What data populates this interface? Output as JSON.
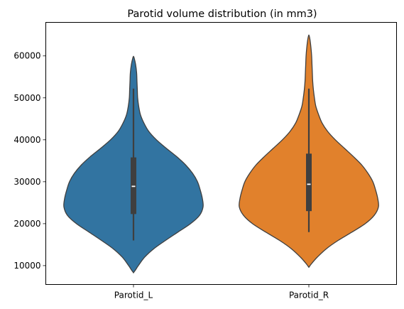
{
  "chart_data": {
    "type": "violin",
    "title": "Parotid volume distribution (in mm3)",
    "xlabel": "",
    "ylabel": "",
    "categories": [
      "Parotid_L",
      "Parotid_R"
    ],
    "colors": [
      "#3274a1",
      "#e1812c"
    ],
    "ylim": [
      5500,
      68000
    ],
    "yticks": [
      10000,
      20000,
      30000,
      40000,
      50000,
      60000
    ],
    "ytick_labels": [
      "10000",
      "20000",
      "30000",
      "40000",
      "50000",
      "60000"
    ],
    "grid": false,
    "legend": "none",
    "series": [
      {
        "category": "Parotid_L",
        "box": {
          "whisker_low": 16000,
          "q1": 22300,
          "median": 28900,
          "q3": 35800,
          "whisker_high": 52200
        },
        "density_profile": [
          [
            8300,
            0.0
          ],
          [
            9000,
            0.03
          ],
          [
            10000,
            0.07
          ],
          [
            12000,
            0.16
          ],
          [
            14000,
            0.29
          ],
          [
            16000,
            0.46
          ],
          [
            18000,
            0.64
          ],
          [
            20000,
            0.82
          ],
          [
            22000,
            0.95
          ],
          [
            24000,
            1.0
          ],
          [
            26000,
            0.99
          ],
          [
            28000,
            0.96
          ],
          [
            30000,
            0.92
          ],
          [
            32000,
            0.85
          ],
          [
            34000,
            0.75
          ],
          [
            36000,
            0.62
          ],
          [
            38000,
            0.47
          ],
          [
            40000,
            0.33
          ],
          [
            42000,
            0.22
          ],
          [
            44000,
            0.15
          ],
          [
            46000,
            0.1
          ],
          [
            48000,
            0.075
          ],
          [
            50000,
            0.06
          ],
          [
            52000,
            0.055
          ],
          [
            54000,
            0.05
          ],
          [
            56000,
            0.045
          ],
          [
            58000,
            0.03
          ],
          [
            59500,
            0.01
          ],
          [
            59900,
            0.0
          ]
        ]
      },
      {
        "category": "Parotid_R",
        "box": {
          "whisker_low": 18000,
          "q1": 23000,
          "median": 29400,
          "q3": 36700,
          "whisker_high": 52200
        },
        "density_profile": [
          [
            9600,
            0.0
          ],
          [
            10500,
            0.04
          ],
          [
            12000,
            0.12
          ],
          [
            14000,
            0.25
          ],
          [
            16000,
            0.42
          ],
          [
            18000,
            0.62
          ],
          [
            20000,
            0.81
          ],
          [
            22000,
            0.94
          ],
          [
            24000,
            1.0
          ],
          [
            26000,
            0.99
          ],
          [
            28000,
            0.96
          ],
          [
            30000,
            0.92
          ],
          [
            32000,
            0.85
          ],
          [
            34000,
            0.76
          ],
          [
            36000,
            0.64
          ],
          [
            38000,
            0.51
          ],
          [
            40000,
            0.38
          ],
          [
            42000,
            0.27
          ],
          [
            44000,
            0.19
          ],
          [
            46000,
            0.14
          ],
          [
            48000,
            0.1
          ],
          [
            50000,
            0.08
          ],
          [
            52000,
            0.065
          ],
          [
            54000,
            0.055
          ],
          [
            56000,
            0.05
          ],
          [
            58000,
            0.045
          ],
          [
            60000,
            0.04
          ],
          [
            62000,
            0.03
          ],
          [
            64000,
            0.015
          ],
          [
            65000,
            0.0
          ]
        ]
      }
    ]
  }
}
